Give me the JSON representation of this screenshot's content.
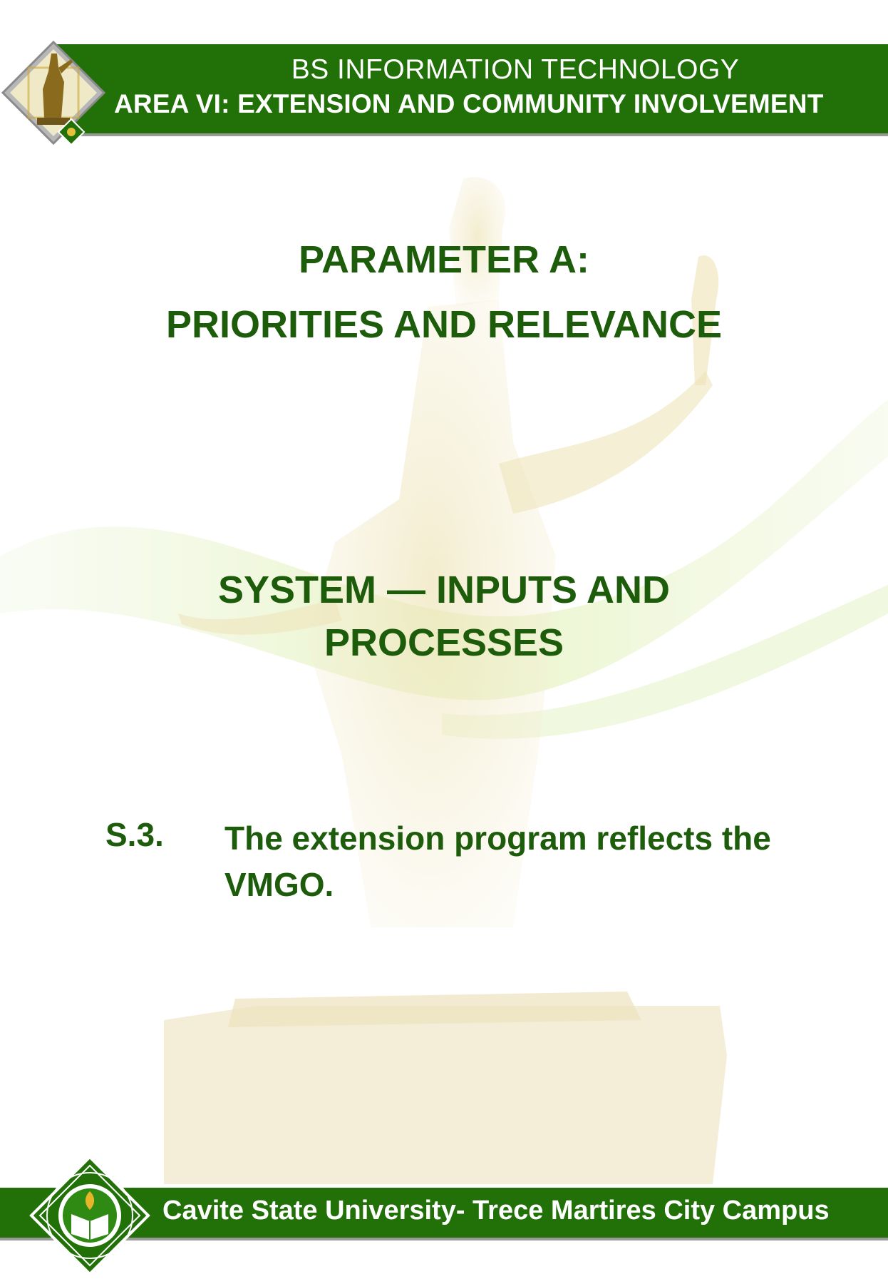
{
  "header": {
    "program": "BS INFORMATION TECHNOLOGY",
    "area": "AREA VI: EXTENSION AND COMMUNITY INVOLVEMENT",
    "logo_icon": "statue-logo-icon"
  },
  "main": {
    "parameter": "PARAMETER A:",
    "parameter_title": "PRIORITIES AND RELEVANCE",
    "system_line1": "SYSTEM — INPUTS AND",
    "system_line2": "PROCESSES",
    "item_number": "S.3.",
    "item_text": "The extension program reflects the VMGO."
  },
  "footer": {
    "campus": "Cavite State University- Trece Martires City Campus",
    "seal_icon": "university-seal-icon"
  },
  "colors": {
    "banner_green": "#217008",
    "heading_green": "#1d5c0b",
    "banner_text": "#ffffff"
  }
}
